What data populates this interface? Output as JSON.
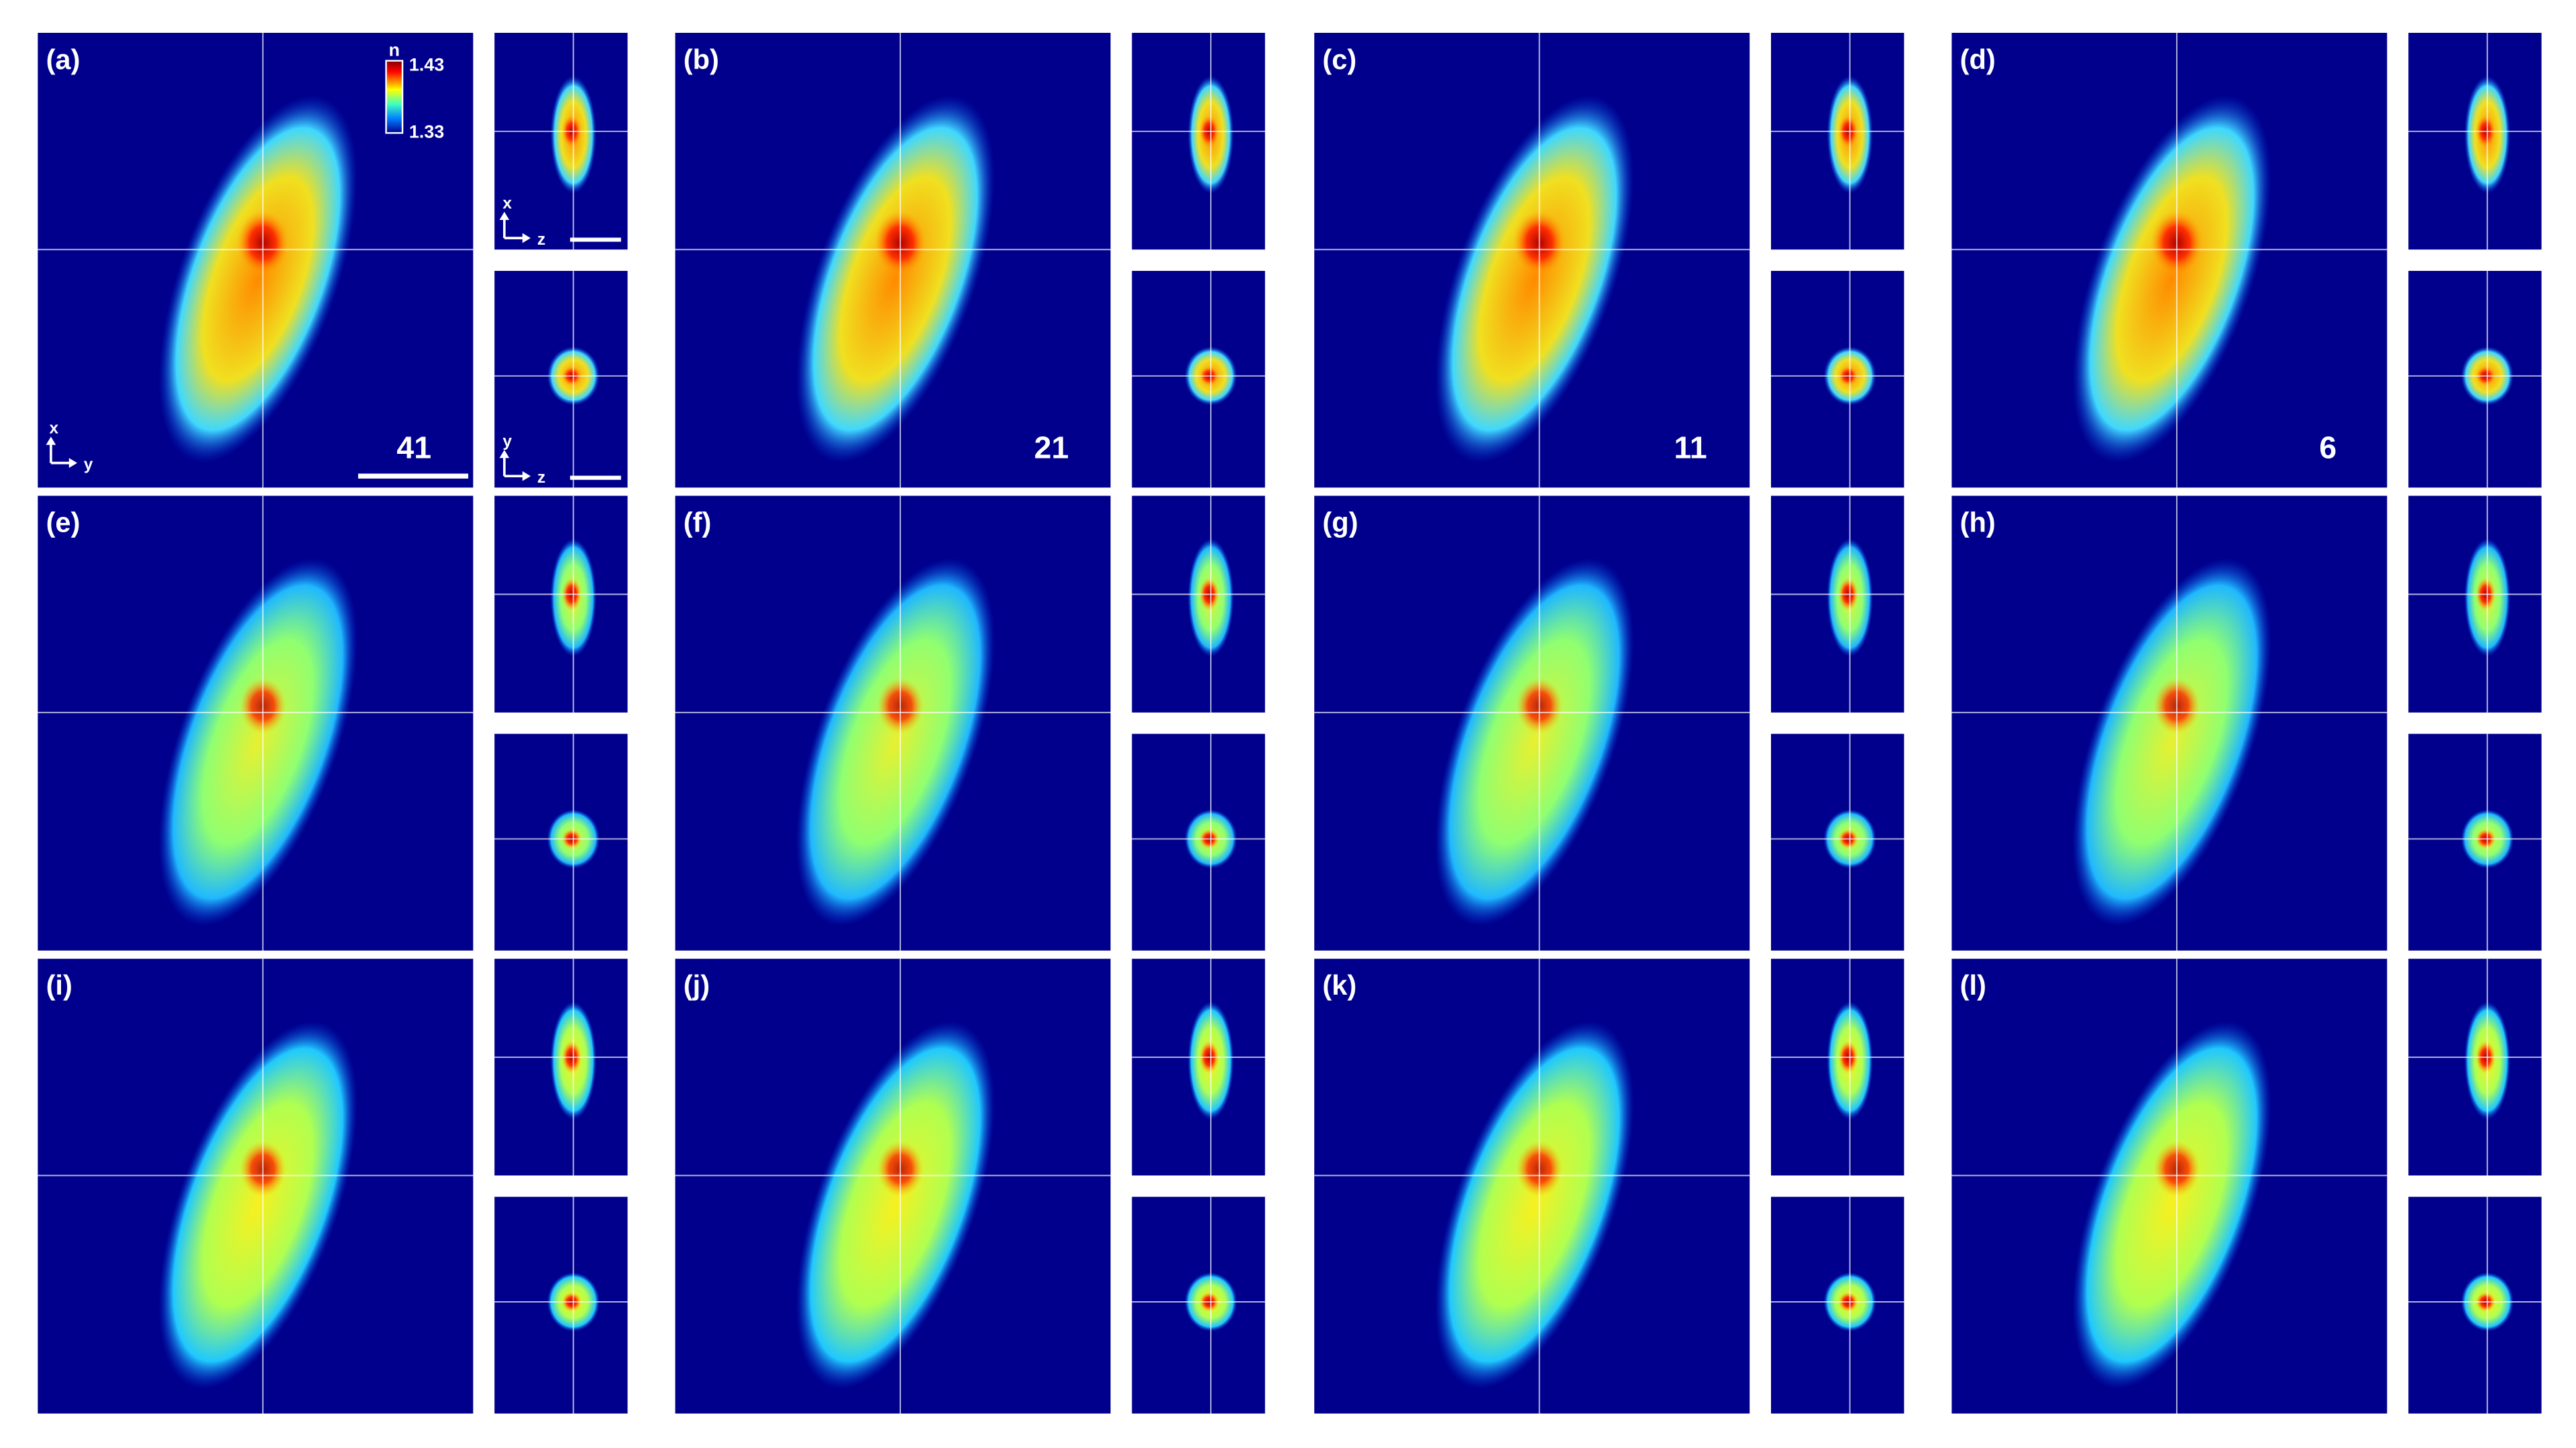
{
  "panels": [
    {
      "label": "(a)",
      "number": 41
    },
    {
      "label": "(b)",
      "number": 21
    },
    {
      "label": "(c)",
      "number": 11
    },
    {
      "label": "(d)",
      "number": 6
    },
    {
      "label": "(e)"
    },
    {
      "label": "(f)"
    },
    {
      "label": "(g)"
    },
    {
      "label": "(h)"
    },
    {
      "label": "(i)"
    },
    {
      "label": "(j)"
    },
    {
      "label": "(k)"
    },
    {
      "label": "(l)"
    }
  ],
  "colorbar": {
    "title": "n",
    "max": "1.43",
    "min": "1.33"
  },
  "axis_labels": {
    "main": [
      "x",
      "y"
    ],
    "side_top": [
      "x",
      "z"
    ],
    "side_bottom": [
      "y",
      "z"
    ]
  }
}
